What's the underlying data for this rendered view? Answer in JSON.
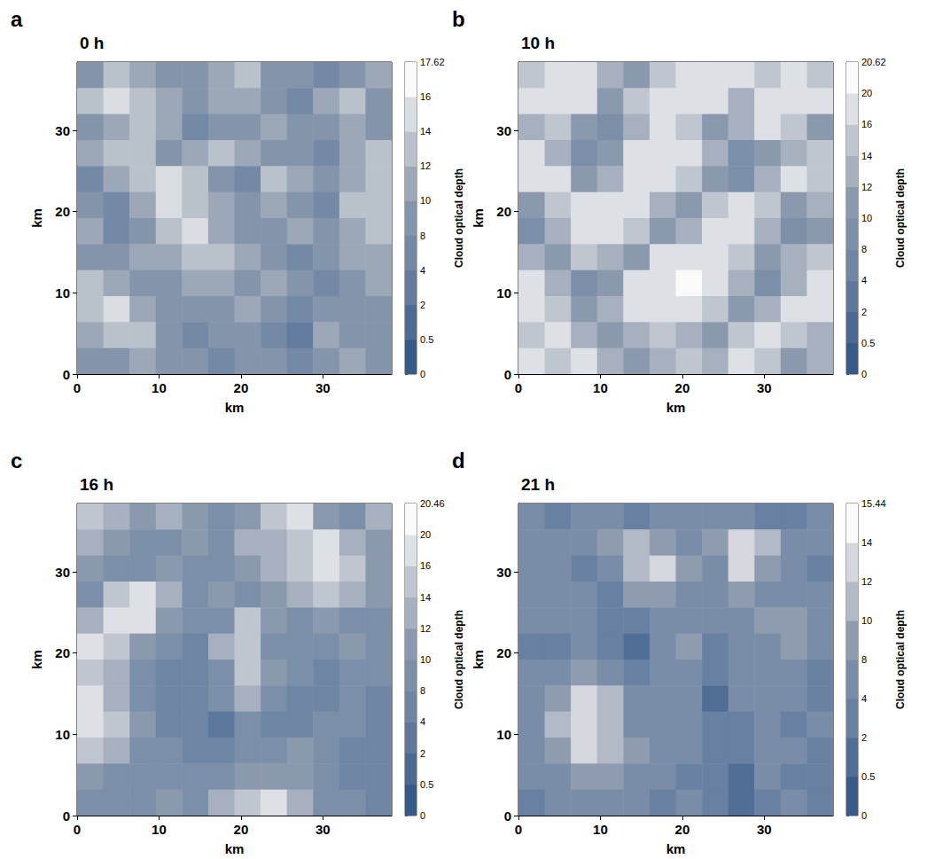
{
  "chart_data": [
    {
      "type": "heatmap",
      "panel_label": "a",
      "title": "0 h",
      "x_label": "km",
      "y_label": "km",
      "xlim": [
        0,
        38.4
      ],
      "ylim": [
        0,
        38.4
      ],
      "xticks": [
        0,
        10,
        20,
        30
      ],
      "yticks": [
        0,
        10,
        20,
        30
      ],
      "cells": [
        [
          9,
          12,
          10,
          8,
          9,
          11,
          12,
          9,
          8,
          7,
          9,
          10
        ],
        [
          12,
          14,
          13,
          10,
          8,
          10,
          11,
          9,
          7,
          10,
          12,
          9
        ],
        [
          8,
          10,
          12,
          11,
          4,
          8,
          9,
          10,
          8,
          9,
          10,
          8
        ],
        [
          11,
          13,
          12,
          9,
          10,
          13,
          11,
          8,
          9,
          6,
          11,
          13
        ],
        [
          7,
          10,
          13,
          14,
          12,
          9,
          6,
          12,
          10,
          8,
          10,
          12
        ],
        [
          9,
          6,
          11,
          14,
          13,
          10,
          9,
          11,
          9,
          7,
          12,
          13
        ],
        [
          10,
          7,
          9,
          12,
          14,
          11,
          8,
          9,
          10,
          8,
          11,
          12
        ],
        [
          8,
          9,
          10,
          11,
          12,
          13,
          10,
          8,
          7,
          9,
          10,
          11
        ],
        [
          12,
          10,
          8,
          9,
          10,
          11,
          9,
          10,
          8,
          6,
          9,
          10
        ],
        [
          13,
          14,
          11,
          8,
          9,
          8,
          10,
          9,
          6,
          9,
          8,
          9
        ],
        [
          10,
          12,
          13,
          9,
          7,
          8,
          9,
          7,
          3,
          10,
          9,
          8
        ],
        [
          8,
          9,
          10,
          8,
          9,
          7,
          8,
          9,
          7,
          8,
          10,
          9
        ]
      ],
      "colorbar": {
        "label": "Cloud optical depth",
        "range": [
          0,
          17.62
        ],
        "ticks": [
          0,
          0.5,
          2,
          4,
          8,
          10,
          12,
          14,
          16,
          17.62
        ]
      }
    },
    {
      "type": "heatmap",
      "panel_label": "b",
      "title": "10 h",
      "x_label": "km",
      "y_label": "km",
      "xlim": [
        0,
        38.4
      ],
      "ylim": [
        0,
        38.4
      ],
      "xticks": [
        0,
        10,
        20,
        30
      ],
      "yticks": [
        0,
        10,
        20,
        30
      ],
      "cells": [
        [
          14,
          16,
          17,
          12,
          10,
          14,
          17,
          18,
          16,
          15,
          17,
          14
        ],
        [
          17,
          18,
          16,
          10,
          14,
          17,
          18,
          16,
          13,
          17,
          18,
          16
        ],
        [
          12,
          14,
          10,
          8,
          12,
          16,
          14,
          10,
          12,
          16,
          14,
          11
        ],
        [
          16,
          12,
          8,
          10,
          17,
          18,
          16,
          12,
          9,
          10,
          12,
          14
        ],
        [
          18,
          16,
          10,
          12,
          17,
          19,
          14,
          10,
          8,
          12,
          16,
          15
        ],
        [
          10,
          14,
          18,
          18,
          16,
          12,
          10,
          14,
          16,
          14,
          10,
          12
        ],
        [
          8,
          12,
          18,
          19,
          14,
          10,
          12,
          16,
          17,
          12,
          8,
          10
        ],
        [
          12,
          10,
          14,
          12,
          10,
          16,
          18,
          17,
          14,
          10,
          12,
          14
        ],
        [
          16,
          12,
          8,
          10,
          16,
          19,
          20,
          18,
          12,
          8,
          12,
          16
        ],
        [
          17,
          14,
          10,
          12,
          17,
          18,
          17,
          14,
          10,
          12,
          16,
          17
        ],
        [
          14,
          16,
          12,
          10,
          12,
          14,
          12,
          10,
          14,
          16,
          14,
          12
        ],
        [
          16,
          14,
          17,
          12,
          10,
          12,
          14,
          12,
          16,
          14,
          10,
          12
        ]
      ],
      "colorbar": {
        "label": "Cloud optical depth",
        "range": [
          0,
          20.62
        ],
        "ticks": [
          0,
          0.5,
          2,
          4,
          8,
          10,
          12,
          14,
          16,
          20,
          20.62
        ]
      }
    },
    {
      "type": "heatmap",
      "panel_label": "c",
      "title": "16 h",
      "x_label": "km",
      "y_label": "km",
      "xlim": [
        0,
        38.4
      ],
      "ylim": [
        0,
        38.4
      ],
      "xticks": [
        0,
        10,
        20,
        30
      ],
      "yticks": [
        0,
        10,
        20,
        30
      ],
      "cells": [
        [
          14,
          12,
          10,
          12,
          10,
          9,
          10,
          14,
          16,
          10,
          9,
          12
        ],
        [
          12,
          11,
          9,
          9,
          10,
          8,
          12,
          13,
          14,
          16,
          12,
          10
        ],
        [
          10,
          9,
          8,
          10,
          9,
          8,
          10,
          12,
          15,
          17,
          14,
          11
        ],
        [
          9,
          14,
          16,
          12,
          8,
          10,
          9,
          10,
          13,
          15,
          12,
          10
        ],
        [
          12,
          16,
          17,
          11,
          8,
          9,
          14,
          10,
          9,
          10,
          9,
          8
        ],
        [
          16,
          14,
          10,
          9,
          7,
          12,
          15,
          9,
          8,
          9,
          10,
          8
        ],
        [
          15,
          12,
          8,
          6,
          4,
          9,
          14,
          10,
          8,
          7,
          9,
          8
        ],
        [
          17,
          13,
          9,
          5,
          6,
          8,
          12,
          9,
          7,
          6,
          8,
          7
        ],
        [
          16,
          14,
          10,
          7,
          4,
          3,
          9,
          6,
          5,
          8,
          9,
          6
        ],
        [
          14,
          12,
          9,
          8,
          7,
          6,
          8,
          9,
          10,
          9,
          7,
          5
        ],
        [
          10,
          9,
          8,
          9,
          8,
          9,
          10,
          11,
          10,
          8,
          6,
          4
        ],
        [
          8,
          9,
          9,
          10,
          9,
          12,
          14,
          17,
          12,
          9,
          8,
          6
        ]
      ],
      "colorbar": {
        "label": "Cloud optical depth",
        "range": [
          0,
          20.46
        ],
        "ticks": [
          0,
          0.5,
          2,
          4,
          8,
          10,
          12,
          14,
          16,
          20,
          20.46
        ]
      }
    },
    {
      "type": "heatmap",
      "panel_label": "d",
      "title": "21 h",
      "x_label": "km",
      "y_label": "km",
      "xlim": [
        0,
        38.4
      ],
      "ylim": [
        0,
        38.4
      ],
      "xticks": [
        0,
        10,
        20,
        30
      ],
      "yticks": [
        0,
        10,
        20,
        30
      ],
      "cells": [
        [
          4,
          3,
          6,
          5,
          2,
          4,
          6,
          5,
          4,
          2,
          3,
          4
        ],
        [
          5,
          6,
          4,
          8,
          10,
          9,
          6,
          8,
          12,
          11,
          6,
          4
        ],
        [
          6,
          5,
          3,
          6,
          11,
          12,
          8,
          7,
          13,
          9,
          5,
          3
        ],
        [
          4,
          6,
          5,
          2,
          8,
          9,
          6,
          5,
          8,
          6,
          7,
          5
        ],
        [
          5,
          4,
          6,
          3,
          2,
          5,
          7,
          4,
          6,
          8,
          9,
          6
        ],
        [
          2,
          3,
          5,
          2,
          1.5,
          6,
          8,
          3,
          5,
          7,
          8,
          4
        ],
        [
          5,
          6,
          8,
          4,
          3,
          7,
          6,
          2,
          5,
          6,
          5,
          3
        ],
        [
          6,
          8,
          12,
          10,
          6,
          5,
          6,
          1.5,
          4,
          5,
          4,
          2
        ],
        [
          7,
          10,
          13,
          11,
          7,
          6,
          5,
          2,
          3,
          6,
          3,
          4
        ],
        [
          5,
          9,
          12,
          10,
          8,
          6,
          4,
          3,
          2,
          5,
          4,
          3
        ],
        [
          4,
          7,
          9,
          8,
          6,
          5,
          3,
          2,
          1,
          4,
          3,
          2
        ],
        [
          3,
          5,
          6,
          5,
          4,
          3,
          4,
          3,
          1.5,
          2,
          4,
          3
        ]
      ],
      "colorbar": {
        "label": "Cloud optical depth",
        "range": [
          0,
          15.44
        ],
        "ticks": [
          0,
          0.5,
          2,
          4,
          8,
          10,
          12,
          14,
          15.44
        ]
      }
    }
  ]
}
